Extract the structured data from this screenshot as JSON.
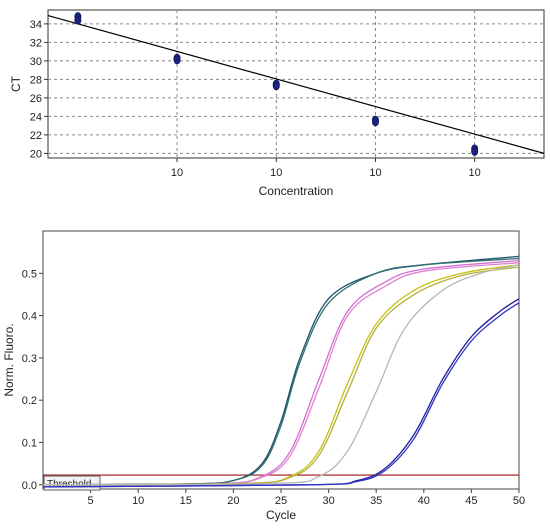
{
  "chart_data": [
    {
      "type": "scatter",
      "xlabel": "Concentration",
      "ylabel": "CT",
      "x_scale": "log",
      "xlim": [
        0.5,
        50000
      ],
      "ylim": [
        19.5,
        35.5
      ],
      "x_ticks": [
        10,
        100,
        1000,
        10000
      ],
      "x_tick_labels": [
        "10",
        "10",
        "10",
        "10"
      ],
      "y_ticks": [
        20,
        22,
        24,
        26,
        28,
        30,
        32,
        34
      ],
      "y_tick_labels": [
        "20",
        "22",
        "24",
        "26",
        "28",
        "30",
        "32",
        "34"
      ],
      "grid": true,
      "points": [
        {
          "x": 1,
          "y": 34.8
        },
        {
          "x": 1,
          "y": 34.4
        },
        {
          "x": 10,
          "y": 30.3
        },
        {
          "x": 10,
          "y": 30.1
        },
        {
          "x": 100,
          "y": 27.5
        },
        {
          "x": 100,
          "y": 27.3
        },
        {
          "x": 1000,
          "y": 23.6
        },
        {
          "x": 1000,
          "y": 23.4
        },
        {
          "x": 10000,
          "y": 20.5
        },
        {
          "x": 10000,
          "y": 20.2
        }
      ],
      "fit_line": {
        "x": [
          0.5,
          50000
        ],
        "y": [
          34.9,
          20.0
        ]
      }
    },
    {
      "type": "line",
      "xlabel": "Cycle",
      "ylabel": "Norm. Fluoro.",
      "xlim": [
        0,
        50
      ],
      "ylim": [
        -0.01,
        0.6
      ],
      "x_ticks": [
        5,
        10,
        15,
        20,
        25,
        30,
        35,
        40,
        45,
        50
      ],
      "y_ticks": [
        0.0,
        0.1,
        0.2,
        0.3,
        0.4,
        0.5
      ],
      "y_tick_labels": [
        "0.0",
        "0.1",
        "0.2",
        "0.3",
        "0.4",
        "0.5"
      ],
      "threshold": {
        "label": "Threshold",
        "value": 0.023,
        "color": "#a01010"
      },
      "series": [
        {
          "color": "#1f4e6e",
          "values": [
            {
              "x": 0,
              "y": 0
            },
            {
              "x": 15,
              "y": 0.002
            },
            {
              "x": 20,
              "y": 0.01
            },
            {
              "x": 23,
              "y": 0.05
            },
            {
              "x": 25,
              "y": 0.15
            },
            {
              "x": 27,
              "y": 0.3
            },
            {
              "x": 30,
              "y": 0.44
            },
            {
              "x": 35,
              "y": 0.5
            },
            {
              "x": 40,
              "y": 0.52
            },
            {
              "x": 50,
              "y": 0.54
            }
          ]
        },
        {
          "color": "#2f6f6f",
          "values": [
            {
              "x": 0,
              "y": 0
            },
            {
              "x": 15,
              "y": 0.002
            },
            {
              "x": 20,
              "y": 0.01
            },
            {
              "x": 23,
              "y": 0.045
            },
            {
              "x": 25,
              "y": 0.14
            },
            {
              "x": 27,
              "y": 0.29
            },
            {
              "x": 30,
              "y": 0.43
            },
            {
              "x": 35,
              "y": 0.5
            },
            {
              "x": 40,
              "y": 0.52
            },
            {
              "x": 50,
              "y": 0.535
            }
          ]
        },
        {
          "color": "#d070d0",
          "values": [
            {
              "x": 0,
              "y": 0
            },
            {
              "x": 18,
              "y": 0.002
            },
            {
              "x": 23,
              "y": 0.02
            },
            {
              "x": 26,
              "y": 0.08
            },
            {
              "x": 29,
              "y": 0.25
            },
            {
              "x": 32,
              "y": 0.41
            },
            {
              "x": 36,
              "y": 0.48
            },
            {
              "x": 40,
              "y": 0.51
            },
            {
              "x": 50,
              "y": 0.53
            }
          ]
        },
        {
          "color": "#e080d0",
          "values": [
            {
              "x": 0,
              "y": 0
            },
            {
              "x": 18,
              "y": 0.002
            },
            {
              "x": 23,
              "y": 0.018
            },
            {
              "x": 26,
              "y": 0.07
            },
            {
              "x": 29,
              "y": 0.23
            },
            {
              "x": 32,
              "y": 0.4
            },
            {
              "x": 36,
              "y": 0.47
            },
            {
              "x": 40,
              "y": 0.505
            },
            {
              "x": 50,
              "y": 0.525
            }
          ]
        },
        {
          "color": "#c8c010",
          "values": [
            {
              "x": 0,
              "y": 0
            },
            {
              "x": 21,
              "y": 0.003
            },
            {
              "x": 26,
              "y": 0.02
            },
            {
              "x": 29,
              "y": 0.08
            },
            {
              "x": 32,
              "y": 0.24
            },
            {
              "x": 35,
              "y": 0.38
            },
            {
              "x": 39,
              "y": 0.46
            },
            {
              "x": 44,
              "y": 0.5
            },
            {
              "x": 50,
              "y": 0.52
            }
          ]
        },
        {
          "color": "#b0b040",
          "values": [
            {
              "x": 0,
              "y": 0
            },
            {
              "x": 21,
              "y": 0.003
            },
            {
              "x": 26,
              "y": 0.018
            },
            {
              "x": 29,
              "y": 0.07
            },
            {
              "x": 32,
              "y": 0.22
            },
            {
              "x": 35,
              "y": 0.37
            },
            {
              "x": 39,
              "y": 0.45
            },
            {
              "x": 44,
              "y": 0.495
            },
            {
              "x": 50,
              "y": 0.515
            }
          ]
        },
        {
          "color": "#b8b8b8",
          "values": [
            {
              "x": 0,
              "y": 0
            },
            {
              "x": 24,
              "y": 0.003
            },
            {
              "x": 29,
              "y": 0.02
            },
            {
              "x": 32,
              "y": 0.08
            },
            {
              "x": 35,
              "y": 0.22
            },
            {
              "x": 38,
              "y": 0.37
            },
            {
              "x": 42,
              "y": 0.46
            },
            {
              "x": 46,
              "y": 0.5
            },
            {
              "x": 50,
              "y": 0.52
            }
          ]
        },
        {
          "color": "#2020a0",
          "values": [
            {
              "x": 0,
              "y": -0.005
            },
            {
              "x": 28,
              "y": 0.0
            },
            {
              "x": 33,
              "y": 0.01
            },
            {
              "x": 36,
              "y": 0.04
            },
            {
              "x": 39,
              "y": 0.12
            },
            {
              "x": 42,
              "y": 0.25
            },
            {
              "x": 45,
              "y": 0.35
            },
            {
              "x": 48,
              "y": 0.41
            },
            {
              "x": 50,
              "y": 0.44
            }
          ]
        },
        {
          "color": "#3030c0",
          "values": [
            {
              "x": 0,
              "y": -0.005
            },
            {
              "x": 28,
              "y": 0.0
            },
            {
              "x": 33,
              "y": 0.008
            },
            {
              "x": 36,
              "y": 0.035
            },
            {
              "x": 39,
              "y": 0.11
            },
            {
              "x": 42,
              "y": 0.24
            },
            {
              "x": 45,
              "y": 0.34
            },
            {
              "x": 48,
              "y": 0.4
            },
            {
              "x": 50,
              "y": 0.43
            }
          ]
        }
      ]
    }
  ]
}
